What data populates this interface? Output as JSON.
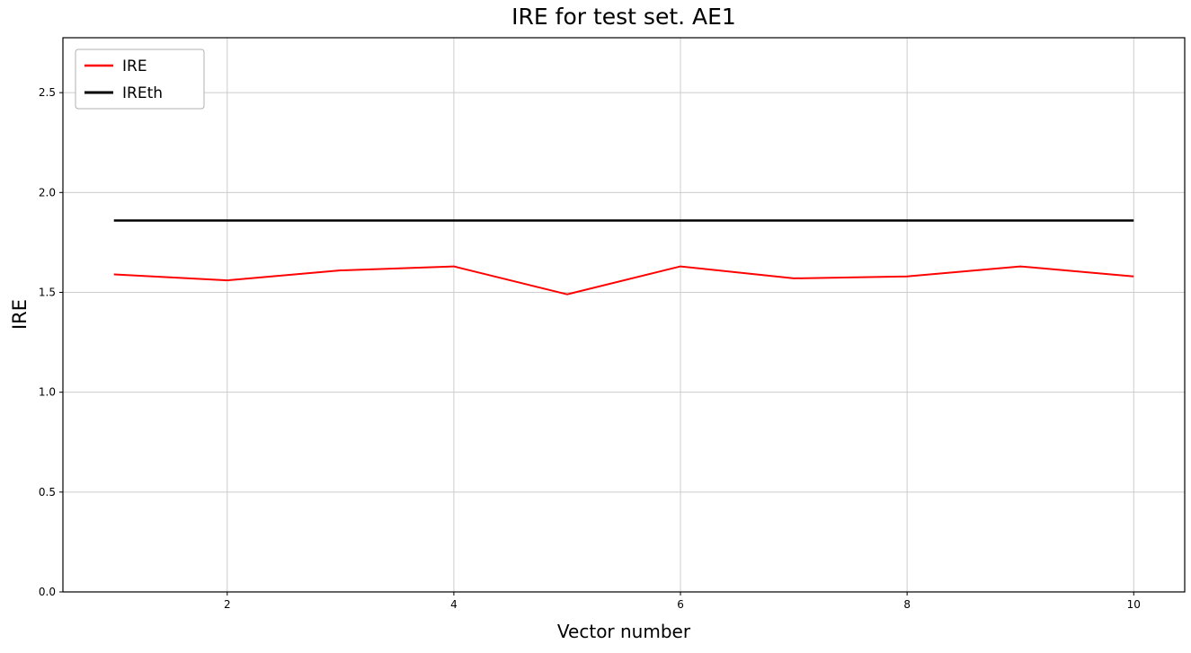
{
  "chart_data": {
    "type": "line",
    "title": "IRE for test set. AE1",
    "xlabel": "Vector number",
    "ylabel": "IRE",
    "x": [
      1,
      2,
      3,
      4,
      5,
      6,
      7,
      8,
      9,
      10
    ],
    "series": [
      {
        "name": "IRE",
        "color": "#ff0000",
        "linewidth": 2,
        "values": [
          1.59,
          1.56,
          1.61,
          1.63,
          1.49,
          1.63,
          1.57,
          1.58,
          1.63,
          1.58
        ]
      },
      {
        "name": "IREth",
        "color": "#000000",
        "linewidth": 2.5,
        "values": [
          1.86,
          1.86,
          1.86,
          1.86,
          1.86,
          1.86,
          1.86,
          1.86,
          1.86,
          1.86
        ]
      }
    ],
    "xlim": [
      0.55,
      10.45
    ],
    "ylim": [
      0,
      2.775
    ],
    "xticks": [
      2,
      4,
      6,
      8,
      10
    ],
    "xtick_labels": [
      "2",
      "4",
      "6",
      "8",
      "10"
    ],
    "yticks": [
      0.0,
      0.5,
      1.0,
      1.5,
      2.0,
      2.5
    ],
    "ytick_labels": [
      "0.0",
      "0.5",
      "1.0",
      "1.5",
      "2.0",
      "2.5"
    ],
    "grid": true,
    "legend_position": "upper left",
    "grid_color": "#cccccc",
    "axis_color": "#000000"
  }
}
